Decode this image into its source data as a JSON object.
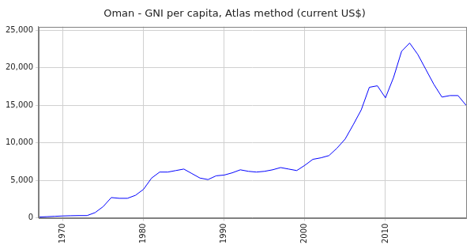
{
  "chart_data": {
    "type": "line",
    "title": "Oman - GNI per capita, Atlas method (current US$)",
    "x": [
      1967,
      1968,
      1969,
      1970,
      1971,
      1972,
      1973,
      1974,
      1975,
      1976,
      1977,
      1978,
      1979,
      1980,
      1981,
      1982,
      1983,
      1984,
      1985,
      1986,
      1987,
      1988,
      1989,
      1990,
      1991,
      1992,
      1993,
      1994,
      1995,
      1996,
      1997,
      1998,
      1999,
      2000,
      2001,
      2002,
      2003,
      2004,
      2005,
      2006,
      2007,
      2008,
      2009,
      2010,
      2011,
      2012,
      2013,
      2014,
      2015,
      2016,
      2017,
      2018,
      2019,
      2020
    ],
    "values": [
      100,
      150,
      200,
      250,
      280,
      300,
      300,
      700,
      1500,
      2700,
      2600,
      2600,
      3000,
      3800,
      5300,
      6100,
      6100,
      6300,
      6500,
      5900,
      5300,
      5100,
      5600,
      5700,
      6000,
      6400,
      6200,
      6100,
      6200,
      6400,
      6700,
      6500,
      6300,
      7000,
      7800,
      8000,
      8300,
      9300,
      10500,
      12400,
      14400,
      17400,
      17600,
      16000,
      18700,
      22200,
      23300,
      21800,
      19800,
      17800,
      16100,
      16300,
      16300,
      15000
    ],
    "color": "#0000ff",
    "xlim": [
      1967,
      2020
    ],
    "xticks": [
      1970,
      1980,
      1990,
      2000,
      2010
    ],
    "ylim": [
      0,
      25500
    ],
    "yticks": [
      0,
      {
        "value": 5000,
        "label": "5,000"
      },
      {
        "value": 10000,
        "label": "10,000"
      },
      {
        "value": 15000,
        "label": "15,000"
      },
      {
        "value": 20000,
        "label": "20,000"
      },
      {
        "value": 25000,
        "label": "25,000"
      }
    ],
    "grid": true
  }
}
